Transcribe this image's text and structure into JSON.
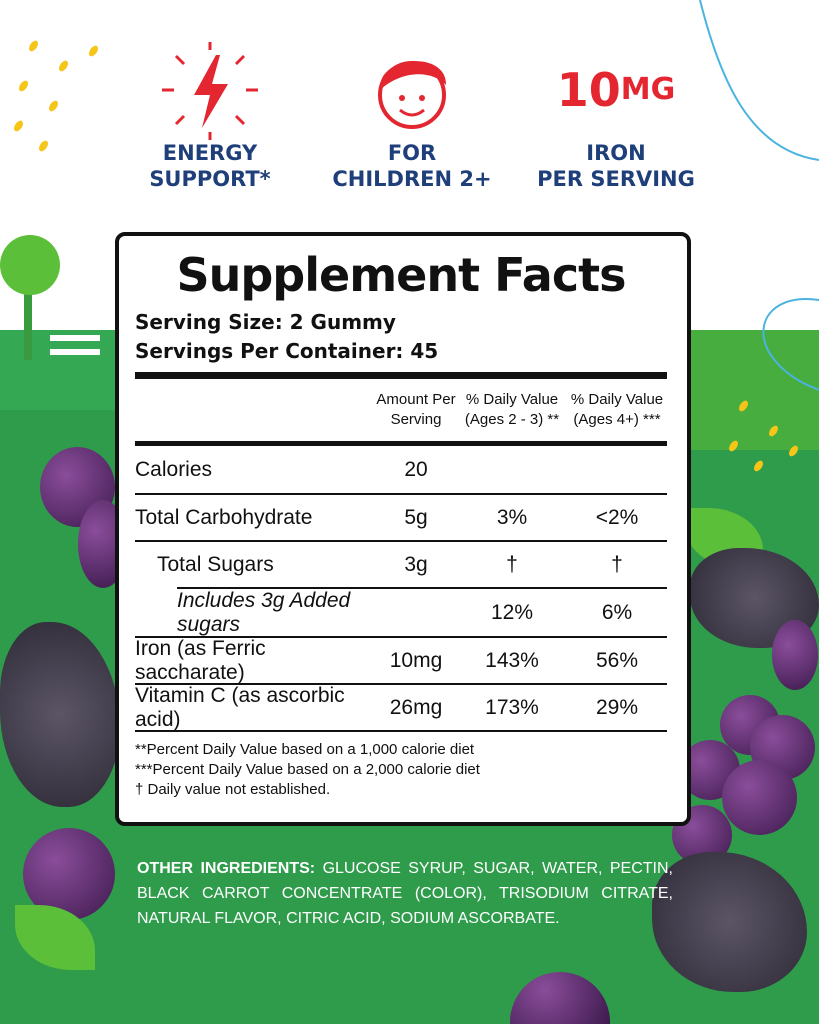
{
  "features": [
    {
      "icon": "lightning-icon",
      "label_lines": [
        "ENERGY",
        "SUPPORT*"
      ]
    },
    {
      "icon": "child-face-icon",
      "label_lines": [
        "FOR",
        "CHILDREN 2+"
      ]
    },
    {
      "big_value": "10",
      "big_unit": "MG",
      "label_lines": [
        "IRON",
        "PER SERVING"
      ]
    }
  ],
  "colors": {
    "accent_red": "#e3262f",
    "navy": "#1f3f7a",
    "green": "#2f9c4c"
  },
  "label": {
    "title": "Supplement Facts",
    "serving_size": "Serving Size: 2 Gummy",
    "servings_per_container": "Servings Per Container: 45",
    "headers": {
      "amount": [
        "Amount Per",
        "Serving"
      ],
      "dv1": [
        "% Daily Value",
        "(Ages 2 - 3) **"
      ],
      "dv2": [
        "% Daily Value",
        "(Ages 4+) ***"
      ]
    },
    "rows": [
      {
        "name": "Calories",
        "amount": "20",
        "dv1": "",
        "dv2": ""
      },
      {
        "name": "Total Carbohydrate",
        "amount": "5g",
        "dv1": "3%",
        "dv2": "<2%"
      },
      {
        "name": "Total Sugars",
        "amount": "3g",
        "dv1": "†",
        "dv2": "†"
      },
      {
        "name": "Includes 3g Added sugars",
        "amount": "",
        "dv1": "12%",
        "dv2": "6%"
      },
      {
        "name": "Iron (as Ferric saccharate)",
        "amount": "10mg",
        "dv1": "143%",
        "dv2": "56%"
      },
      {
        "name": "Vitamin C (as ascorbic acid)",
        "amount": "26mg",
        "dv1": "173%",
        "dv2": "29%"
      }
    ],
    "footnotes": [
      "**Percent Daily Value based on a 1,000 calorie diet",
      "***Percent Daily Value based on a 2,000 calorie diet",
      "† Daily value not established."
    ]
  },
  "ingredients": {
    "heading": "OTHER INGREDIENTS:",
    "text": " GLUCOSE SYRUP, SUGAR, WATER, PECTIN, BLACK CARROT CONCENTRATE (COLOR), TRISODIUM CITRATE, NATURAL FLAVOR, CITRIC ACID, SODIUM ASCORBATE."
  }
}
